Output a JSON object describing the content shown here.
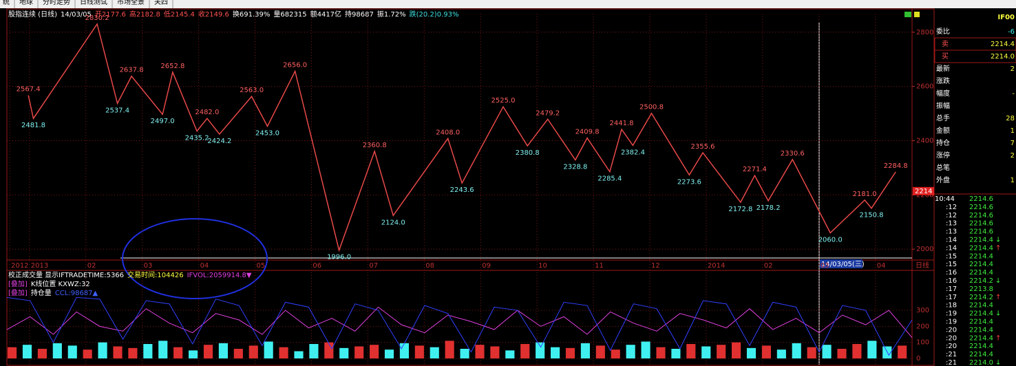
{
  "menu": [
    "统",
    "地球",
    "分时走势",
    "日线测试",
    "市场全景",
    "关四"
  ],
  "header": [
    {
      "text": "股指连续 (日线)",
      "color": "#ffffff"
    },
    {
      "text": "14/03/05",
      "color": "#ffffff"
    },
    {
      "text": "开2177.6",
      "color": "#ff5050"
    },
    {
      "text": "高2182.8",
      "color": "#ff5050"
    },
    {
      "text": "低2145.4",
      "color": "#ff5050"
    },
    {
      "text": "收2149.6",
      "color": "#ff5050"
    },
    {
      "text": "换691.39%",
      "color": "#ffffff"
    },
    {
      "text": "量682315",
      "color": "#ffffff"
    },
    {
      "text": "额4417亿",
      "color": "#ffffff"
    },
    {
      "text": "持98687",
      "color": "#ffffff"
    },
    {
      "text": "振1.72%",
      "color": "#ffffff"
    },
    {
      "text": "跌(20.2)0.93%",
      "color": "#40e0e0"
    }
  ],
  "chart_data": [
    {
      "type": "line",
      "color": "#e84848",
      "xlim": [
        -0.4,
        15.65
      ],
      "xticks": [
        {
          "value": -0.35,
          "label": "2012"
        },
        {
          "value": 0,
          "label": "2013"
        },
        {
          "value": 1,
          "label": "02"
        },
        {
          "value": 2,
          "label": "03"
        },
        {
          "value": 3,
          "label": "04"
        },
        {
          "value": 4,
          "label": "05"
        },
        {
          "value": 5,
          "label": "06"
        },
        {
          "value": 6,
          "label": "07"
        },
        {
          "value": 7,
          "label": "08"
        },
        {
          "value": 8,
          "label": "09"
        },
        {
          "value": 9,
          "label": "10"
        },
        {
          "value": 10,
          "label": "11"
        },
        {
          "value": 11,
          "label": "12"
        },
        {
          "value": 12,
          "label": "2014"
        },
        {
          "value": 13,
          "label": "02"
        },
        {
          "value": 14,
          "label": "03"
        },
        {
          "value": 15,
          "label": "04"
        }
      ],
      "ylim": [
        1975,
        2868
      ],
      "yticks": [
        2000,
        2200,
        2400,
        2600,
        2800
      ],
      "grid": true,
      "x": [
        -0.02,
        0.07,
        1.2,
        1.56,
        1.81,
        2.36,
        2.54,
        2.97,
        3.15,
        3.37,
        3.94,
        4.22,
        4.71,
        5.49,
        6.12,
        6.45,
        7.42,
        7.67,
        8.4,
        8.83,
        9.19,
        9.68,
        9.89,
        10.29,
        10.5,
        10.7,
        11.03,
        11.7,
        11.94,
        12.61,
        12.86,
        13.1,
        13.53,
        14.2,
        14.81,
        14.93,
        15.36
      ],
      "values": [
        2567.4,
        2481.8,
        2830.2,
        2537.4,
        2637.8,
        2497.0,
        2652.8,
        2435.2,
        2482.0,
        2424.2,
        2563.0,
        2453.0,
        2656.0,
        1996.0,
        2360.8,
        2124.0,
        2408.0,
        2243.6,
        2525.0,
        2380.8,
        2479.2,
        2328.8,
        2409.8,
        2285.4,
        2441.8,
        2382.4,
        2500.8,
        2273.6,
        2355.6,
        2172.8,
        2271.4,
        2178.2,
        2330.6,
        2060.0,
        2181.0,
        2150.8,
        2284.8
      ],
      "value_labels": [
        "2567.4",
        "2481.8",
        "2830.2",
        "2537.4",
        "2637.8",
        "2497.0",
        "2652.8",
        "2435.2",
        "2482.0",
        "2424.2",
        "2563.0",
        "2453.0",
        "2656.0",
        "1996.0",
        "2360.8",
        "2124.0",
        "2408.0",
        "2243.6",
        "2525.0",
        "2380.8",
        "2479.2",
        "2328.8",
        "2409.8",
        "2285.4",
        "2441.8",
        "2382.4",
        "2500.8",
        "2273.6",
        "2355.6",
        "2172.8",
        "2271.4",
        "2178.2",
        "2330.6",
        "2060.0",
        "2181.0",
        "2150.8",
        "2284.8"
      ],
      "last_price": 2214,
      "cursor_date": "14/03/05(三)",
      "period_label": "日线"
    },
    {
      "type": "bar",
      "ylim": [
        -30,
        373
      ],
      "yticks": [
        0,
        100,
        200,
        300
      ],
      "values": [
        70,
        85,
        60,
        95,
        80,
        55,
        100,
        75,
        65,
        90,
        110,
        70,
        50,
        85,
        95,
        60,
        80,
        105,
        70,
        45,
        90,
        100,
        65,
        75,
        85,
        55,
        95,
        80,
        70,
        110,
        60,
        85,
        75,
        50,
        90,
        100,
        70,
        65,
        95,
        80,
        55,
        85,
        105,
        70,
        60,
        90,
        75,
        85,
        100,
        65,
        80,
        55,
        95,
        70,
        85,
        60,
        90,
        110,
        75,
        80
      ],
      "colors": [
        "#e03030",
        "#40f0f0",
        "#e03030",
        "#40f0f0",
        "#40f0f0",
        "#e03030",
        "#40f0f0",
        "#e03030",
        "#e03030",
        "#40f0f0",
        "#40f0f0",
        "#e03030",
        "#40f0f0",
        "#e03030",
        "#40f0f0",
        "#e03030",
        "#e03030",
        "#40f0f0",
        "#e03030",
        "#40f0f0",
        "#40f0f0",
        "#e03030",
        "#40f0f0",
        "#e03030",
        "#e03030",
        "#40f0f0",
        "#40f0f0",
        "#e03030",
        "#40f0f0",
        "#e03030",
        "#40f0f0",
        "#e03030",
        "#e03030",
        "#40f0f0",
        "#e03030",
        "#40f0f0",
        "#40f0f0",
        "#e03030",
        "#40f0f0",
        "#e03030",
        "#e03030",
        "#40f0f0",
        "#40f0f0",
        "#e03030",
        "#40f0f0",
        "#e03030",
        "#40f0f0",
        "#e03030",
        "#e03030",
        "#40f0f0",
        "#e03030",
        "#40f0f0",
        "#40f0f0",
        "#e03030",
        "#40f0f0",
        "#e03030",
        "#e03030",
        "#40f0f0",
        "#40f0f0",
        "#e03030"
      ],
      "lines": [
        {
          "color": "#e040e0",
          "values": [
            180,
            260,
            150,
            290,
            200,
            170,
            310,
            220,
            160,
            280,
            240,
            150,
            300,
            190,
            250,
            170,
            320,
            210,
            160,
            270,
            230,
            180,
            300,
            200,
            260,
            150,
            290,
            220,
            170,
            280,
            240,
            190,
            310,
            180,
            250,
            160,
            270,
            210,
            300,
            130
          ]
        },
        {
          "color": "#3040ff",
          "values": [
            380,
            360,
            100,
            380,
            370,
            120,
            360,
            340,
            90,
            370,
            330,
            80,
            350,
            320,
            60,
            340,
            300,
            60,
            330,
            280,
            40,
            320,
            300,
            70,
            350,
            330,
            50,
            340,
            310,
            60,
            360,
            340,
            80,
            350,
            320,
            40,
            330,
            300,
            20,
            240
          ]
        }
      ],
      "legend": [
        [
          {
            "text": "校正成交量 显示IFTRADETIME:5366",
            "color": "#ffffff"
          },
          {
            "text": "交易时间:104426",
            "color": "#ffff40"
          },
          {
            "text": "IFVOL:2059914.8▼",
            "color": "#e040e0"
          }
        ],
        [
          {
            "text": "[叠加]",
            "color": "#e040e0"
          },
          {
            "text": "K线位置 KXWZ:32",
            "color": "#ffffff"
          }
        ],
        [
          {
            "text": "[叠加]",
            "color": "#e040e0"
          },
          {
            "text": "持仓量",
            "color": "#ffffff"
          },
          {
            "text": "CCL:98687▲",
            "color": "#4060ff"
          }
        ]
      ]
    }
  ],
  "quote": {
    "code": "IF00",
    "rows": [
      {
        "label": "委比",
        "value": "-6"
      },
      {
        "label": "卖",
        "value": "2214.4"
      },
      {
        "label": "买",
        "value": "2214.0"
      },
      {
        "label": "最新",
        "value": "2"
      },
      {
        "label": "涨跌"
      },
      {
        "label": "幅度",
        "value": "-"
      },
      {
        "label": "振幅"
      },
      {
        "label": "总手",
        "value": "28"
      },
      {
        "label": "金额",
        "value": "1"
      },
      {
        "label": "持仓",
        "value": "7"
      },
      {
        "label": "涨停",
        "value": "2"
      },
      {
        "label": "总笔"
      },
      {
        "label": "外盘",
        "value": "1"
      }
    ],
    "ticks": [
      {
        "time": "10:44",
        "price": "2214.6"
      },
      {
        "time": ":12",
        "price": "2214.6"
      },
      {
        "time": ":12",
        "price": "2214.6"
      },
      {
        "time": ":13",
        "price": "2214.6"
      },
      {
        "time": ":13",
        "price": "2214.6"
      },
      {
        "time": ":14",
        "price": "2214.4",
        "flag": "↓"
      },
      {
        "time": ":14",
        "price": "2214.4",
        "flag": "↑"
      },
      {
        "time": ":15",
        "price": "2214.4"
      },
      {
        "time": ":15",
        "price": "2214.4"
      },
      {
        "time": ":16",
        "price": "2214.4"
      },
      {
        "time": ":16",
        "price": "2214.2",
        "flag": "↓"
      },
      {
        "time": ":17",
        "price": "2213.8"
      },
      {
        "time": ":17",
        "price": "2214.2",
        "flag": "↑"
      },
      {
        "time": ":18",
        "price": "2214.4"
      },
      {
        "time": ":19",
        "price": "2214.4",
        "flag": "↓"
      },
      {
        "time": ":19",
        "price": "2214.4"
      },
      {
        "time": ":20",
        "price": "2214.4"
      },
      {
        "time": ":20",
        "price": "2214.4",
        "flag": "↑"
      },
      {
        "time": ":20",
        "price": "2214.4"
      },
      {
        "time": ":21",
        "price": "2214.4"
      },
      {
        "time": ":21",
        "price": "2214.0",
        "flag": "↓"
      }
    ]
  }
}
